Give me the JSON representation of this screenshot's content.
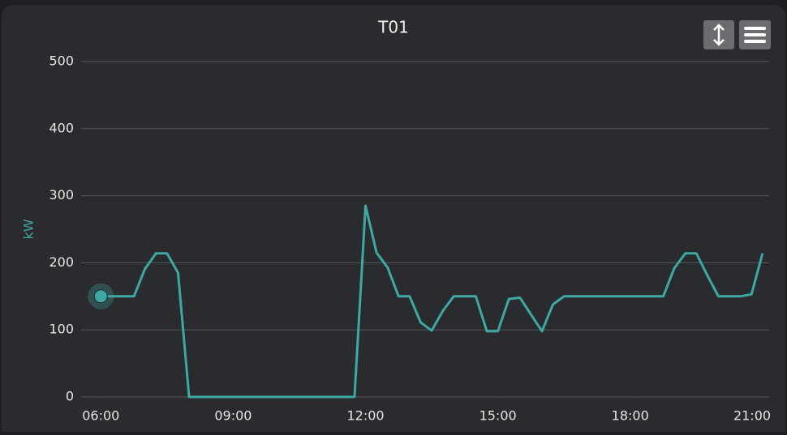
{
  "chart_data": {
    "type": "line",
    "title": "T01",
    "y_label": "kW",
    "x": [
      6.0,
      6.75,
      7.0,
      7.25,
      7.5,
      7.75,
      8.0,
      11.75,
      12.0,
      12.25,
      12.5,
      12.75,
      13.0,
      13.25,
      13.5,
      13.75,
      14.0,
      14.5,
      14.75,
      15.0,
      15.25,
      15.5,
      15.75,
      16.0,
      16.25,
      16.5,
      18.75,
      19.0,
      19.25,
      19.5,
      19.75,
      20.0,
      20.5,
      20.75,
      21.0
    ],
    "series": [
      {
        "color": "#3ea8a4",
        "values": [
          150,
          150,
          191,
          214,
          214,
          185,
          0,
          0,
          285,
          215,
          193,
          150,
          150,
          111,
          99,
          128,
          150,
          150,
          98,
          98,
          146,
          148,
          123,
          98,
          138,
          150,
          150,
          192,
          214,
          214,
          181,
          150,
          150,
          153,
          214
        ]
      }
    ],
    "xlim": [
      5.7,
      21.15
    ],
    "xticks": [
      {
        "value": 6,
        "label": "06:00"
      },
      {
        "value": 9,
        "label": "09:00"
      },
      {
        "value": 12,
        "label": "12:00"
      },
      {
        "value": 15,
        "label": "15:00"
      },
      {
        "value": 18,
        "label": "18:00"
      },
      {
        "value": 21,
        "label": "21:00"
      }
    ],
    "ylim": [
      0,
      500
    ],
    "yticks": [
      0,
      100,
      200,
      300,
      400,
      500
    ],
    "grid": true
  }
}
